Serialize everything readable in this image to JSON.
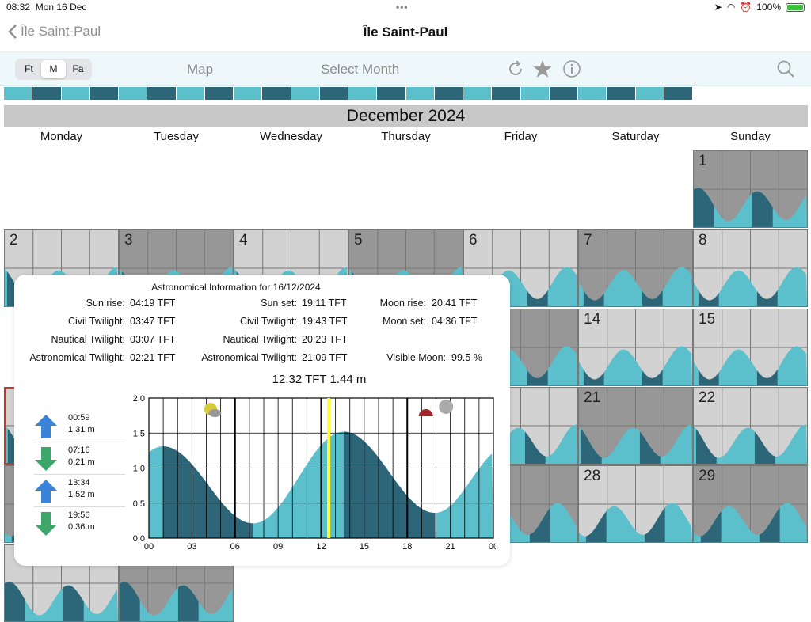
{
  "status_bar": {
    "time": "08:32",
    "date": "Mon 16 Dec",
    "battery": "100%"
  },
  "nav": {
    "back_label": "Île Saint-Paul",
    "title": "Île Saint-Paul"
  },
  "toolbar": {
    "units": [
      {
        "label": "Ft",
        "selected": false
      },
      {
        "label": "M",
        "selected": true
      },
      {
        "label": "Fa",
        "selected": false
      }
    ],
    "map_label": "Map",
    "select_month_label": "Select Month"
  },
  "colors": {
    "teal": "#5bbfcc",
    "dark_teal": "#2d6678",
    "light_grey": "#d2d2d2",
    "dark_grey": "#979797",
    "marker": "#ffff33"
  },
  "calendar": {
    "month_title": "December 2024",
    "weekdays": [
      "Monday",
      "Tuesday",
      "Wednesday",
      "Thursday",
      "Friday",
      "Saturday",
      "Sunday"
    ],
    "visible_day_labels": [
      "1",
      "2",
      "3",
      "4",
      "5",
      "6",
      "7",
      "8",
      "14",
      "15",
      "21",
      "22",
      "28",
      "29"
    ]
  },
  "astro": {
    "title": "Astronomical Information for  16/12/2024",
    "left": [
      {
        "label": "Sun rise:",
        "value": "04:19 TFT"
      },
      {
        "label": "Civil Twilight:",
        "value": "03:47 TFT"
      },
      {
        "label": "Nautical Twilight:",
        "value": "03:07 TFT"
      },
      {
        "label": "Astronomical Twilight:",
        "value": "02:21 TFT"
      }
    ],
    "middle": [
      {
        "label": "Sun set:",
        "value": "19:11 TFT"
      },
      {
        "label": "Civil Twilight:",
        "value": "19:43 TFT"
      },
      {
        "label": "Nautical Twilight:",
        "value": "20:23 TFT"
      },
      {
        "label": "Astronomical Twilight:",
        "value": "21:09 TFT"
      }
    ],
    "right": [
      {
        "label": "Moon rise:",
        "value": "20:41 TFT"
      },
      {
        "label": "Moon set:",
        "value": "04:36 TFT"
      },
      {
        "label": "Visible Moon:",
        "value": "99.5 %"
      }
    ],
    "current": "12:32 TFT 1.44 m",
    "tides": [
      {
        "dir": "up",
        "time": "00:59",
        "height": "1.31 m"
      },
      {
        "dir": "down",
        "time": "07:16",
        "height": "0.21 m"
      },
      {
        "dir": "up",
        "time": "13:34",
        "height": "1.52 m"
      },
      {
        "dir": "down",
        "time": "19:56",
        "height": "0.36 m"
      }
    ]
  },
  "chart_data": {
    "type": "area",
    "x_ticks": [
      "00",
      "03",
      "06",
      "09",
      "12",
      "15",
      "18",
      "21",
      "00"
    ],
    "y_ticks": [
      "0.0",
      "0.5",
      "1.0",
      "1.5",
      "2.0"
    ],
    "ylim": [
      0,
      2
    ],
    "xlim": [
      0,
      24
    ],
    "current_time_hours": 12.53,
    "current_height": 1.44,
    "series": [
      {
        "values": [
          [
            0.98,
            1.31
          ],
          [
            7.27,
            0.21
          ],
          [
            13.57,
            1.52
          ],
          [
            19.93,
            0.36
          ]
        ]
      }
    ]
  }
}
